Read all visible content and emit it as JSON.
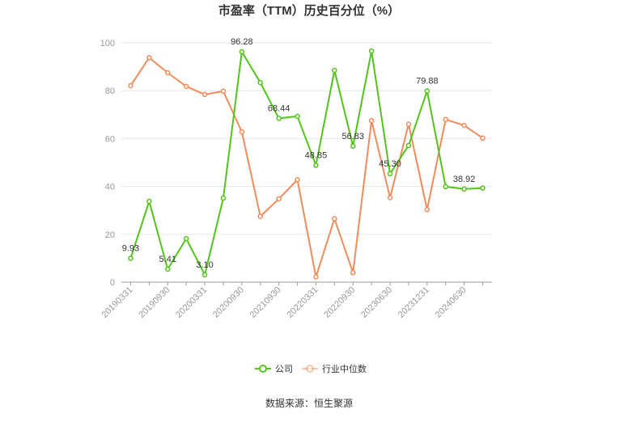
{
  "chart_data": {
    "type": "line",
    "title": "市盈率（TTM）历史百分位（%）",
    "categories": [
      "20190331",
      null,
      "20190930",
      null,
      "20200331",
      null,
      "20200930",
      null,
      "20210930",
      null,
      "20220331",
      null,
      "20220930",
      null,
      "20230630",
      null,
      "20231231",
      null,
      "20240630",
      null
    ],
    "series": [
      {
        "name": "公司",
        "color": "#52c41a",
        "values": [
          9.93,
          33.8,
          5.41,
          18.2,
          3.1,
          35.1,
          96.28,
          83.4,
          68.44,
          69.3,
          48.85,
          88.5,
          56.83,
          96.6,
          45.3,
          57.1,
          79.88,
          39.9,
          38.92,
          39.3
        ],
        "value_labels": [
          "9.93",
          null,
          "5.41",
          null,
          "3.10",
          null,
          "96.28",
          null,
          "68.44",
          null,
          "48.85",
          null,
          "56.83",
          null,
          "45.30",
          null,
          "79.88",
          null,
          "38.92",
          null
        ]
      },
      {
        "name": "行业中位数",
        "color": "#f28c5a",
        "values": [
          82.1,
          93.8,
          87.5,
          81.8,
          78.4,
          79.8,
          62.8,
          27.5,
          34.8,
          42.8,
          2.2,
          26.5,
          4.0,
          67.5,
          35.3,
          66.0,
          30.3,
          68.0,
          65.5,
          60.2
        ]
      }
    ],
    "ylim": [
      0,
      100
    ],
    "yticks": [
      0,
      20,
      40,
      60,
      80,
      100
    ],
    "grid": true,
    "source": "数据来源：恒生聚源"
  }
}
